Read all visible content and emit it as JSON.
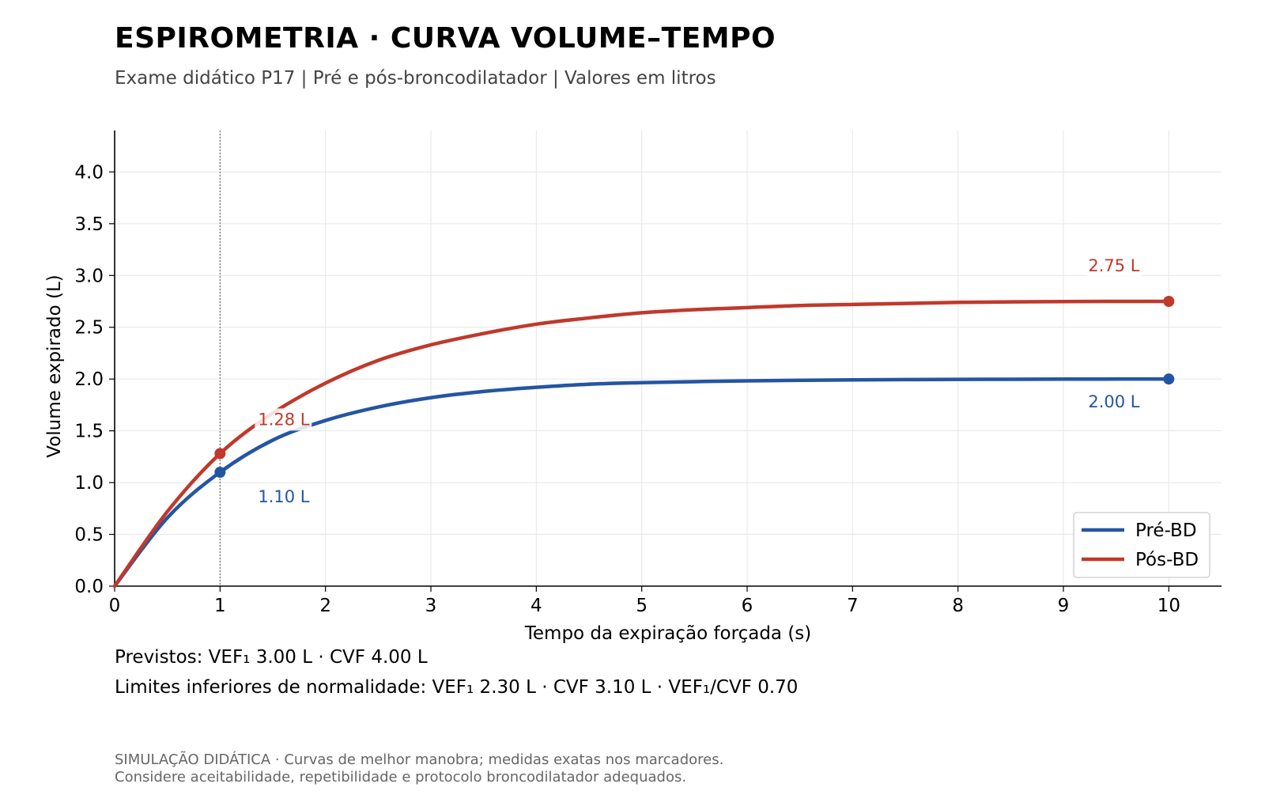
{
  "title": "ESPIROMETRIA · CURVA VOLUME–TEMPO",
  "subtitle": "Exame didático P17  |  Pré e pós-broncodilatador  |  Valores em litros",
  "notes": {
    "predicted": "Previstos: VEF₁ 3.00 L  ·  CVF 4.00 L",
    "limits": "Limites inferiores de normalidade: VEF₁ 2.30 L  ·  CVF 3.10 L  ·  VEF₁/CVF 0.70"
  },
  "footer": {
    "line1": "SIMULAÇÃO DIDÁTICA · Curvas de melhor manobra; medidas exatas nos marcadores.",
    "line2": "Considere aceitabilidade, repetibilidade e protocolo broncodilatador adequados."
  },
  "chart_data": {
    "type": "line",
    "xlabel": "Tempo da expiração forçada (s)",
    "ylabel": "Volume expirado (L)",
    "xlim": [
      0,
      10.5
    ],
    "ylim": [
      0,
      4.4
    ],
    "xticks": [
      "0",
      "1",
      "2",
      "3",
      "4",
      "5",
      "6",
      "7",
      "8",
      "9",
      "10"
    ],
    "yticks": [
      "0.0",
      "0.5",
      "1.0",
      "1.5",
      "2.0",
      "2.5",
      "3.0",
      "3.5",
      "4.0"
    ],
    "grid": true,
    "legend_position": "bottom-right",
    "reference_line_x": 1,
    "x": [
      0,
      0.5,
      1,
      1.5,
      2,
      2.5,
      3,
      3.5,
      4,
      4.5,
      5,
      5.5,
      6,
      6.5,
      7,
      7.5,
      8,
      8.5,
      9,
      9.5,
      10
    ],
    "series": [
      {
        "name": "Pré-BD",
        "color": "#2455a4",
        "values": [
          0,
          0.66,
          1.1,
          1.41,
          1.6,
          1.73,
          1.82,
          1.88,
          1.92,
          1.95,
          1.965,
          1.975,
          1.982,
          1.988,
          1.992,
          1.995,
          1.997,
          1.998,
          1.999,
          2.0,
          2.0
        ],
        "markers": [
          {
            "x": 1,
            "y": 1.1,
            "label": "1.10 L"
          },
          {
            "x": 10,
            "y": 2.0,
            "label": "2.00 L"
          }
        ]
      },
      {
        "name": "Pós-BD",
        "color": "#c0392b",
        "values": [
          0,
          0.72,
          1.28,
          1.67,
          1.96,
          2.18,
          2.33,
          2.44,
          2.53,
          2.59,
          2.64,
          2.67,
          2.69,
          2.71,
          2.72,
          2.73,
          2.74,
          2.745,
          2.748,
          2.75,
          2.75
        ],
        "markers": [
          {
            "x": 1,
            "y": 1.28,
            "label": "1.28 L"
          },
          {
            "x": 10,
            "y": 2.75,
            "label": "2.75 L"
          }
        ]
      }
    ]
  }
}
